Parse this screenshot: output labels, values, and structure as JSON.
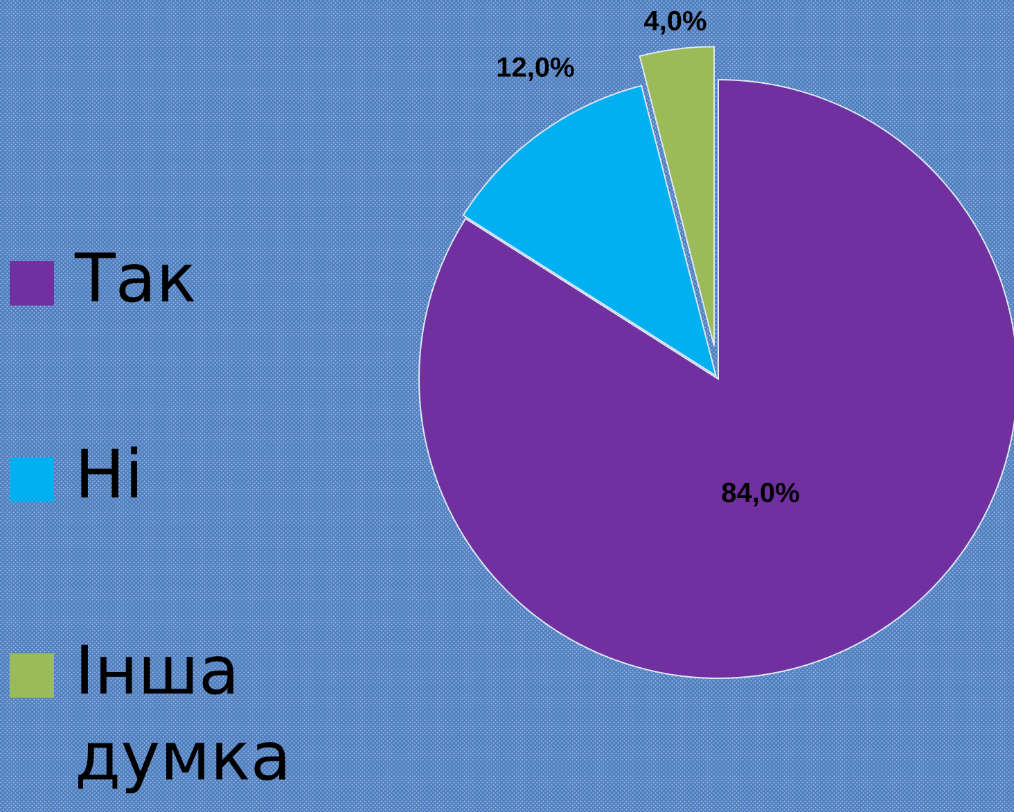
{
  "chart_data": {
    "type": "pie",
    "categories": [
      "Так",
      "Ні",
      "Інша думка"
    ],
    "values": [
      84,
      12,
      4
    ],
    "value_labels": [
      "84,0%",
      "12,0%",
      "4,0%"
    ],
    "colors": [
      "#7030a0",
      "#00b0f0",
      "#9bbb59"
    ],
    "legend": "left"
  }
}
